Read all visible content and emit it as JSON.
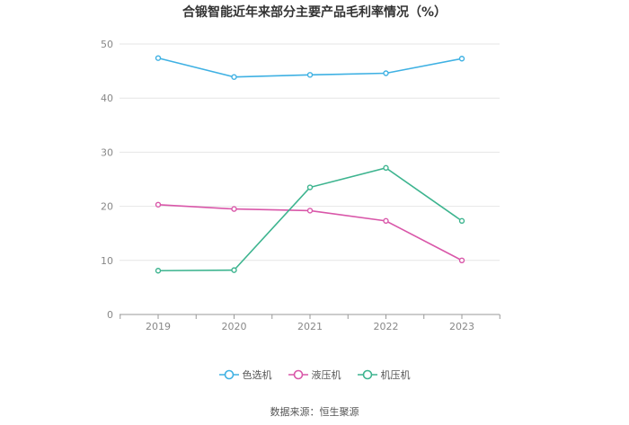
{
  "chart_data": {
    "type": "line",
    "title": "合锻智能近年来部分主要产品毛利率情况（%）",
    "categories": [
      "2019",
      "2020",
      "2021",
      "2022",
      "2023"
    ],
    "ylim": [
      0,
      50
    ],
    "yticks": [
      0,
      10,
      20,
      30,
      40,
      50
    ],
    "grid": true,
    "legend_position": "bottom",
    "series": [
      {
        "name": "色选机",
        "color": "#3fb1e3",
        "values": [
          47.4,
          43.9,
          44.3,
          44.6,
          47.3
        ]
      },
      {
        "name": "液压机",
        "color": "#d957a9",
        "values": [
          20.3,
          19.5,
          19.2,
          17.3,
          10.0
        ]
      },
      {
        "name": "机压机",
        "color": "#3db48f",
        "values": [
          8.1,
          8.2,
          23.5,
          27.1,
          17.3
        ]
      }
    ]
  },
  "source": "数据来源：恒生聚源"
}
